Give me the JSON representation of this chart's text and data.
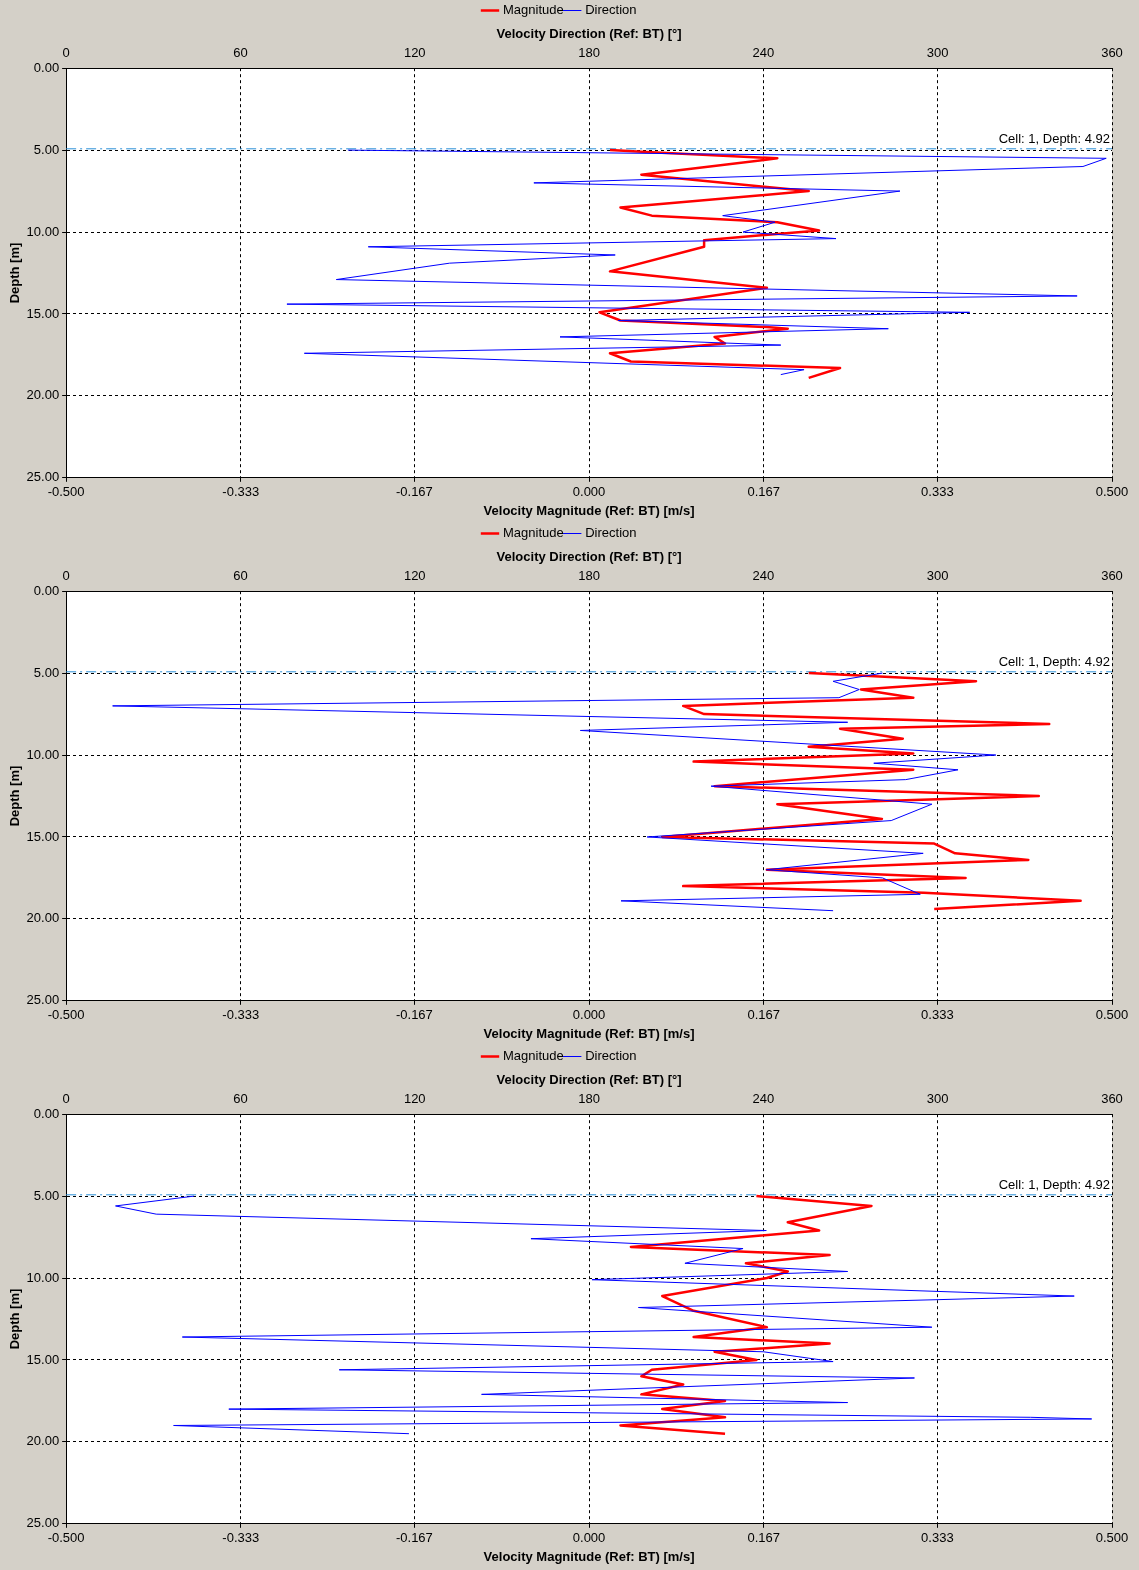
{
  "chart_data": [
    {
      "type": "line",
      "xlabel": "Velocity Magnitude (Ref: BT) [m/s]",
      "x2label": "Velocity Direction (Ref: BT) [°]",
      "ylabel": "Depth [m]",
      "xlim": [
        -0.5,
        0.5
      ],
      "xticks": [
        {
          "value": -0.5,
          "label": "-0.500"
        },
        -0.333,
        -0.167,
        {
          "value": 0,
          "label": "0.000"
        },
        0.167,
        0.333,
        {
          "value": 0.5,
          "label": "0.500"
        }
      ],
      "x2lim": [
        0,
        360
      ],
      "x2ticks": [
        0,
        60,
        120,
        180,
        240,
        300,
        360
      ],
      "ylim": [
        25,
        0
      ],
      "yticks": [
        {
          "value": 0,
          "label": "0.00"
        },
        {
          "value": 5,
          "label": "5.00"
        },
        {
          "value": 10,
          "label": "10.00"
        },
        {
          "value": 15,
          "label": "15.00"
        },
        {
          "value": 20,
          "label": "20.00"
        },
        {
          "value": 25,
          "label": "25.00"
        }
      ],
      "grid": true,
      "legend": "top",
      "marker": "none",
      "line_style": "solid",
      "ref_lines": [
        {
          "axis": "y",
          "value": 4.92,
          "label": "Cell: 1, Depth: 4.92",
          "color": "#2a8fd8",
          "line_style": "dashed"
        }
      ],
      "series": [
        {
          "name": "Magnitude",
          "color": "#ff0000",
          "x": [
            0.02,
            0.05,
            0.18,
            0.05,
            0.21,
            0.03,
            0.06,
            0.18,
            0.22,
            0.11,
            0.11,
            0.02,
            0.17,
            0.01,
            0.03,
            0.17,
            0.19,
            0.12,
            0.13,
            0.02,
            0.04,
            0.24,
            0.21
          ],
          "values": [
            5.0,
            5.1,
            5.5,
            6.5,
            7.5,
            8.5,
            9.0,
            9.4,
            9.9,
            10.5,
            10.9,
            12.4,
            13.4,
            14.9,
            15.4,
            15.8,
            15.9,
            16.4,
            16.8,
            17.4,
            17.9,
            18.3,
            18.9
          ]
        },
        {
          "name": "Direction",
          "color": "#0000ff",
          "axis": "x2",
          "x": [
            97,
            358,
            350,
            161,
            287,
            226,
            244,
            233,
            265,
            104,
            189,
            132,
            93,
            348,
            76,
            311,
            190,
            283,
            170,
            246,
            82,
            254,
            246
          ],
          "values": [
            5.0,
            5.5,
            6.0,
            7.0,
            7.5,
            9.0,
            9.4,
            10.0,
            10.4,
            10.9,
            11.4,
            11.9,
            12.9,
            13.9,
            14.4,
            14.9,
            15.4,
            15.9,
            16.4,
            16.9,
            17.4,
            18.4,
            18.7
          ]
        }
      ]
    },
    {
      "type": "line",
      "xlabel": "Velocity Magnitude (Ref: BT) [m/s]",
      "x2label": "Velocity Direction (Ref: BT) [°]",
      "ylabel": "Depth [m]",
      "xlim": [
        -0.5,
        0.5
      ],
      "xticks": [
        {
          "value": -0.5,
          "label": "-0.500"
        },
        -0.333,
        -0.167,
        {
          "value": 0,
          "label": "0.000"
        },
        0.167,
        0.333,
        {
          "value": 0.5,
          "label": "0.500"
        }
      ],
      "x2lim": [
        0,
        360
      ],
      "x2ticks": [
        0,
        60,
        120,
        180,
        240,
        300,
        360
      ],
      "ylim": [
        25,
        0
      ],
      "yticks": [
        {
          "value": 0,
          "label": "0.00"
        },
        {
          "value": 5,
          "label": "5.00"
        },
        {
          "value": 10,
          "label": "10.00"
        },
        {
          "value": 15,
          "label": "15.00"
        },
        {
          "value": 20,
          "label": "20.00"
        },
        {
          "value": 25,
          "label": "25.00"
        }
      ],
      "grid": true,
      "legend": "top",
      "marker": "none",
      "line_style": "solid",
      "ref_lines": [
        {
          "axis": "y",
          "value": 4.92,
          "label": "Cell: 1, Depth: 4.92",
          "color": "#2a8fd8",
          "line_style": "dashed"
        }
      ],
      "series": [
        {
          "name": "Magnitude",
          "color": "#ff0000",
          "x": [
            0.21,
            0.37,
            0.26,
            0.31,
            0.09,
            0.11,
            0.44,
            0.24,
            0.3,
            0.21,
            0.31,
            0.1,
            0.31,
            0.12,
            0.43,
            0.18,
            0.28,
            0.07,
            0.33,
            0.35,
            0.42,
            0.17,
            0.36,
            0.09,
            0.32,
            0.47,
            0.33
          ],
          "values": [
            5.0,
            5.5,
            6.0,
            6.5,
            7.0,
            7.5,
            8.1,
            8.4,
            9.0,
            9.5,
            9.9,
            10.4,
            10.9,
            11.9,
            12.5,
            13.0,
            13.9,
            15.0,
            15.4,
            16.0,
            16.4,
            17.0,
            17.5,
            18.0,
            18.4,
            18.9,
            19.4
          ]
        },
        {
          "name": "Direction",
          "color": "#0000ff",
          "axis": "x2",
          "x": [
            281,
            264,
            273,
            266,
            16,
            269,
            177,
            320,
            278,
            307,
            289,
            222,
            298,
            284,
            200,
            295,
            241,
            281,
            294,
            191,
            264
          ],
          "values": [
            5.0,
            5.5,
            6.0,
            6.5,
            7.0,
            8.0,
            8.5,
            10.0,
            10.5,
            10.9,
            11.5,
            11.9,
            13.0,
            14.0,
            15.0,
            16.0,
            17.0,
            17.5,
            18.5,
            18.9,
            19.5
          ]
        }
      ]
    },
    {
      "type": "line",
      "xlabel": "Velocity Magnitude (Ref: BT) [m/s]",
      "x2label": "Velocity Direction (Ref: BT) [°]",
      "ylabel": "Depth [m]",
      "xlim": [
        -0.5,
        0.5
      ],
      "xticks": [
        {
          "value": -0.5,
          "label": "-0.500"
        },
        -0.333,
        -0.167,
        {
          "value": 0,
          "label": "0.000"
        },
        0.167,
        0.333,
        {
          "value": 0.5,
          "label": "0.500"
        }
      ],
      "x2lim": [
        0,
        360
      ],
      "x2ticks": [
        0,
        60,
        120,
        180,
        240,
        300,
        360
      ],
      "ylim": [
        25,
        0
      ],
      "yticks": [
        {
          "value": 0,
          "label": "0.00"
        },
        {
          "value": 5,
          "label": "5.00"
        },
        {
          "value": 10,
          "label": "10.00"
        },
        {
          "value": 15,
          "label": "15.00"
        },
        {
          "value": 20,
          "label": "20.00"
        },
        {
          "value": 25,
          "label": "25.00"
        }
      ],
      "grid": true,
      "legend": "top",
      "marker": "none",
      "line_style": "solid",
      "ref_lines": [
        {
          "axis": "y",
          "value": 4.92,
          "label": "Cell: 1, Depth: 4.92",
          "color": "#2a8fd8",
          "line_style": "dashed"
        }
      ],
      "series": [
        {
          "name": "Magnitude",
          "color": "#ff0000",
          "x": [
            0.16,
            0.27,
            0.19,
            0.22,
            0.04,
            0.23,
            0.15,
            0.19,
            0.17,
            0.07,
            0.1,
            0.17,
            0.1,
            0.23,
            0.12,
            0.16,
            0.06,
            0.05,
            0.09,
            0.05,
            0.13,
            0.07,
            0.13,
            0.03,
            0.13
          ],
          "values": [
            5.0,
            5.6,
            6.6,
            7.1,
            8.1,
            8.6,
            9.1,
            9.6,
            10.0,
            11.1,
            12.0,
            13.0,
            13.6,
            14.0,
            14.5,
            15.0,
            15.6,
            16.0,
            16.5,
            17.1,
            17.5,
            18.0,
            18.5,
            19.0,
            19.5
          ]
        },
        {
          "name": "Direction",
          "color": "#0000ff",
          "axis": "x2",
          "x": [
            44,
            17,
            31,
            241,
            160,
            233,
            213,
            269,
            181,
            347,
            197,
            298,
            40,
            240,
            264,
            94,
            292,
            143,
            269,
            56,
            332,
            353,
            37,
            118
          ],
          "values": [
            5.0,
            5.6,
            6.1,
            7.1,
            7.6,
            8.2,
            9.1,
            9.6,
            10.1,
            11.1,
            11.8,
            13.0,
            13.6,
            14.5,
            15.1,
            15.6,
            16.1,
            17.1,
            17.6,
            18.0,
            18.5,
            18.6,
            19.0,
            19.5
          ]
        }
      ]
    }
  ]
}
